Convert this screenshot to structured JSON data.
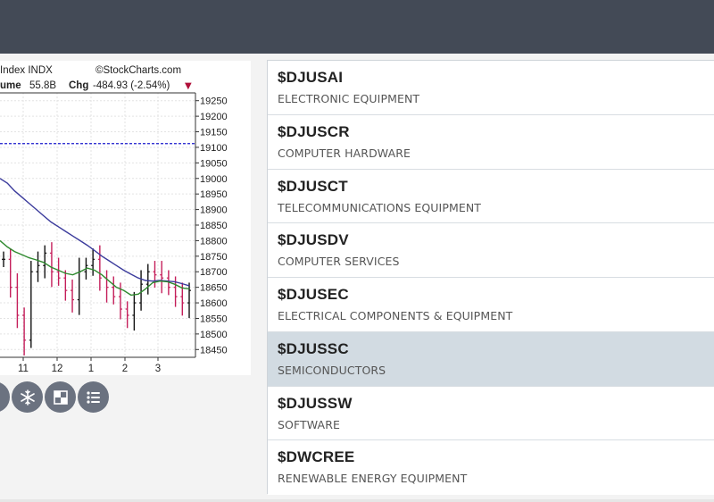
{
  "chart": {
    "header_left": "Index INDX",
    "watermark": "©StockCharts.com",
    "volume_label": "ume",
    "volume_value": "55.8B",
    "chg_label": "Chg",
    "chg_value": "-484.93 (-2.54%)",
    "chg_arrow": "▼",
    "colors": {
      "up_bar": "#111111",
      "down_bar": "#c41e5a",
      "ma_long": "#3b3b9c",
      "ma_short": "#2f8a2f",
      "ref_line": "#1a1acc"
    }
  },
  "chart_data": {
    "type": "line",
    "title": "",
    "y_ticks": [
      "19250",
      "19200",
      "19150",
      "19100",
      "19050",
      "19000",
      "18950",
      "18900",
      "18850",
      "18800",
      "18750",
      "18700",
      "18650",
      "18600",
      "18550",
      "18500",
      "18450"
    ],
    "x_ticks": [
      "11",
      "12",
      "1",
      "2",
      "3"
    ],
    "ylim": [
      18425,
      19275
    ],
    "reference_line": 19112,
    "series": [
      {
        "values": [
          19000,
          18985,
          18960,
          18940,
          18920,
          18900,
          18880,
          18860,
          18845,
          18830,
          18815,
          18800,
          18785,
          18768,
          18750,
          18735,
          18720,
          18705,
          18692,
          18680,
          18672,
          18670,
          18672,
          18670,
          18668,
          18662,
          18655
        ]
      },
      {
        "values": [
          18800,
          18780,
          18765,
          18755,
          18745,
          18738,
          18730,
          18715,
          18705,
          18695,
          18690,
          18700,
          18712,
          18705,
          18690,
          18670,
          18650,
          18640,
          18625,
          18628,
          18645,
          18665,
          18670,
          18668,
          18660,
          18648,
          18645
        ]
      }
    ],
    "ohlc_close": [
      18740,
      18650,
      18560,
      18480,
      18700,
      18720,
      18760,
      18700,
      18680,
      18640,
      18610,
      18700,
      18720,
      18740,
      18680,
      18650,
      18620,
      18580,
      18560,
      18600,
      18660,
      18700,
      18690,
      18680,
      18650,
      18620,
      18600,
      18640
    ]
  },
  "tools": [
    {
      "icon": "partial-icon"
    },
    {
      "icon": "snowflake-icon"
    },
    {
      "icon": "checker-icon"
    },
    {
      "icon": "list-icon"
    }
  ],
  "sectors": [
    {
      "symbol": "$DJUSAI",
      "description": "ELECTRONIC EQUIPMENT"
    },
    {
      "symbol": "$DJUSCR",
      "description": "COMPUTER HARDWARE"
    },
    {
      "symbol": "$DJUSCT",
      "description": "TELECOMMUNICATIONS EQUIPMENT"
    },
    {
      "symbol": "$DJUSDV",
      "description": "COMPUTER SERVICES"
    },
    {
      "symbol": "$DJUSEC",
      "description": "ELECTRICAL COMPONENTS & EQUIPMENT"
    },
    {
      "symbol": "$DJUSSC",
      "description": "SEMICONDUCTORS",
      "selected": true
    },
    {
      "symbol": "$DJUSSW",
      "description": "SOFTWARE"
    },
    {
      "symbol": "$DWCREE",
      "description": "RENEWABLE ENERGY EQUIPMENT"
    }
  ]
}
